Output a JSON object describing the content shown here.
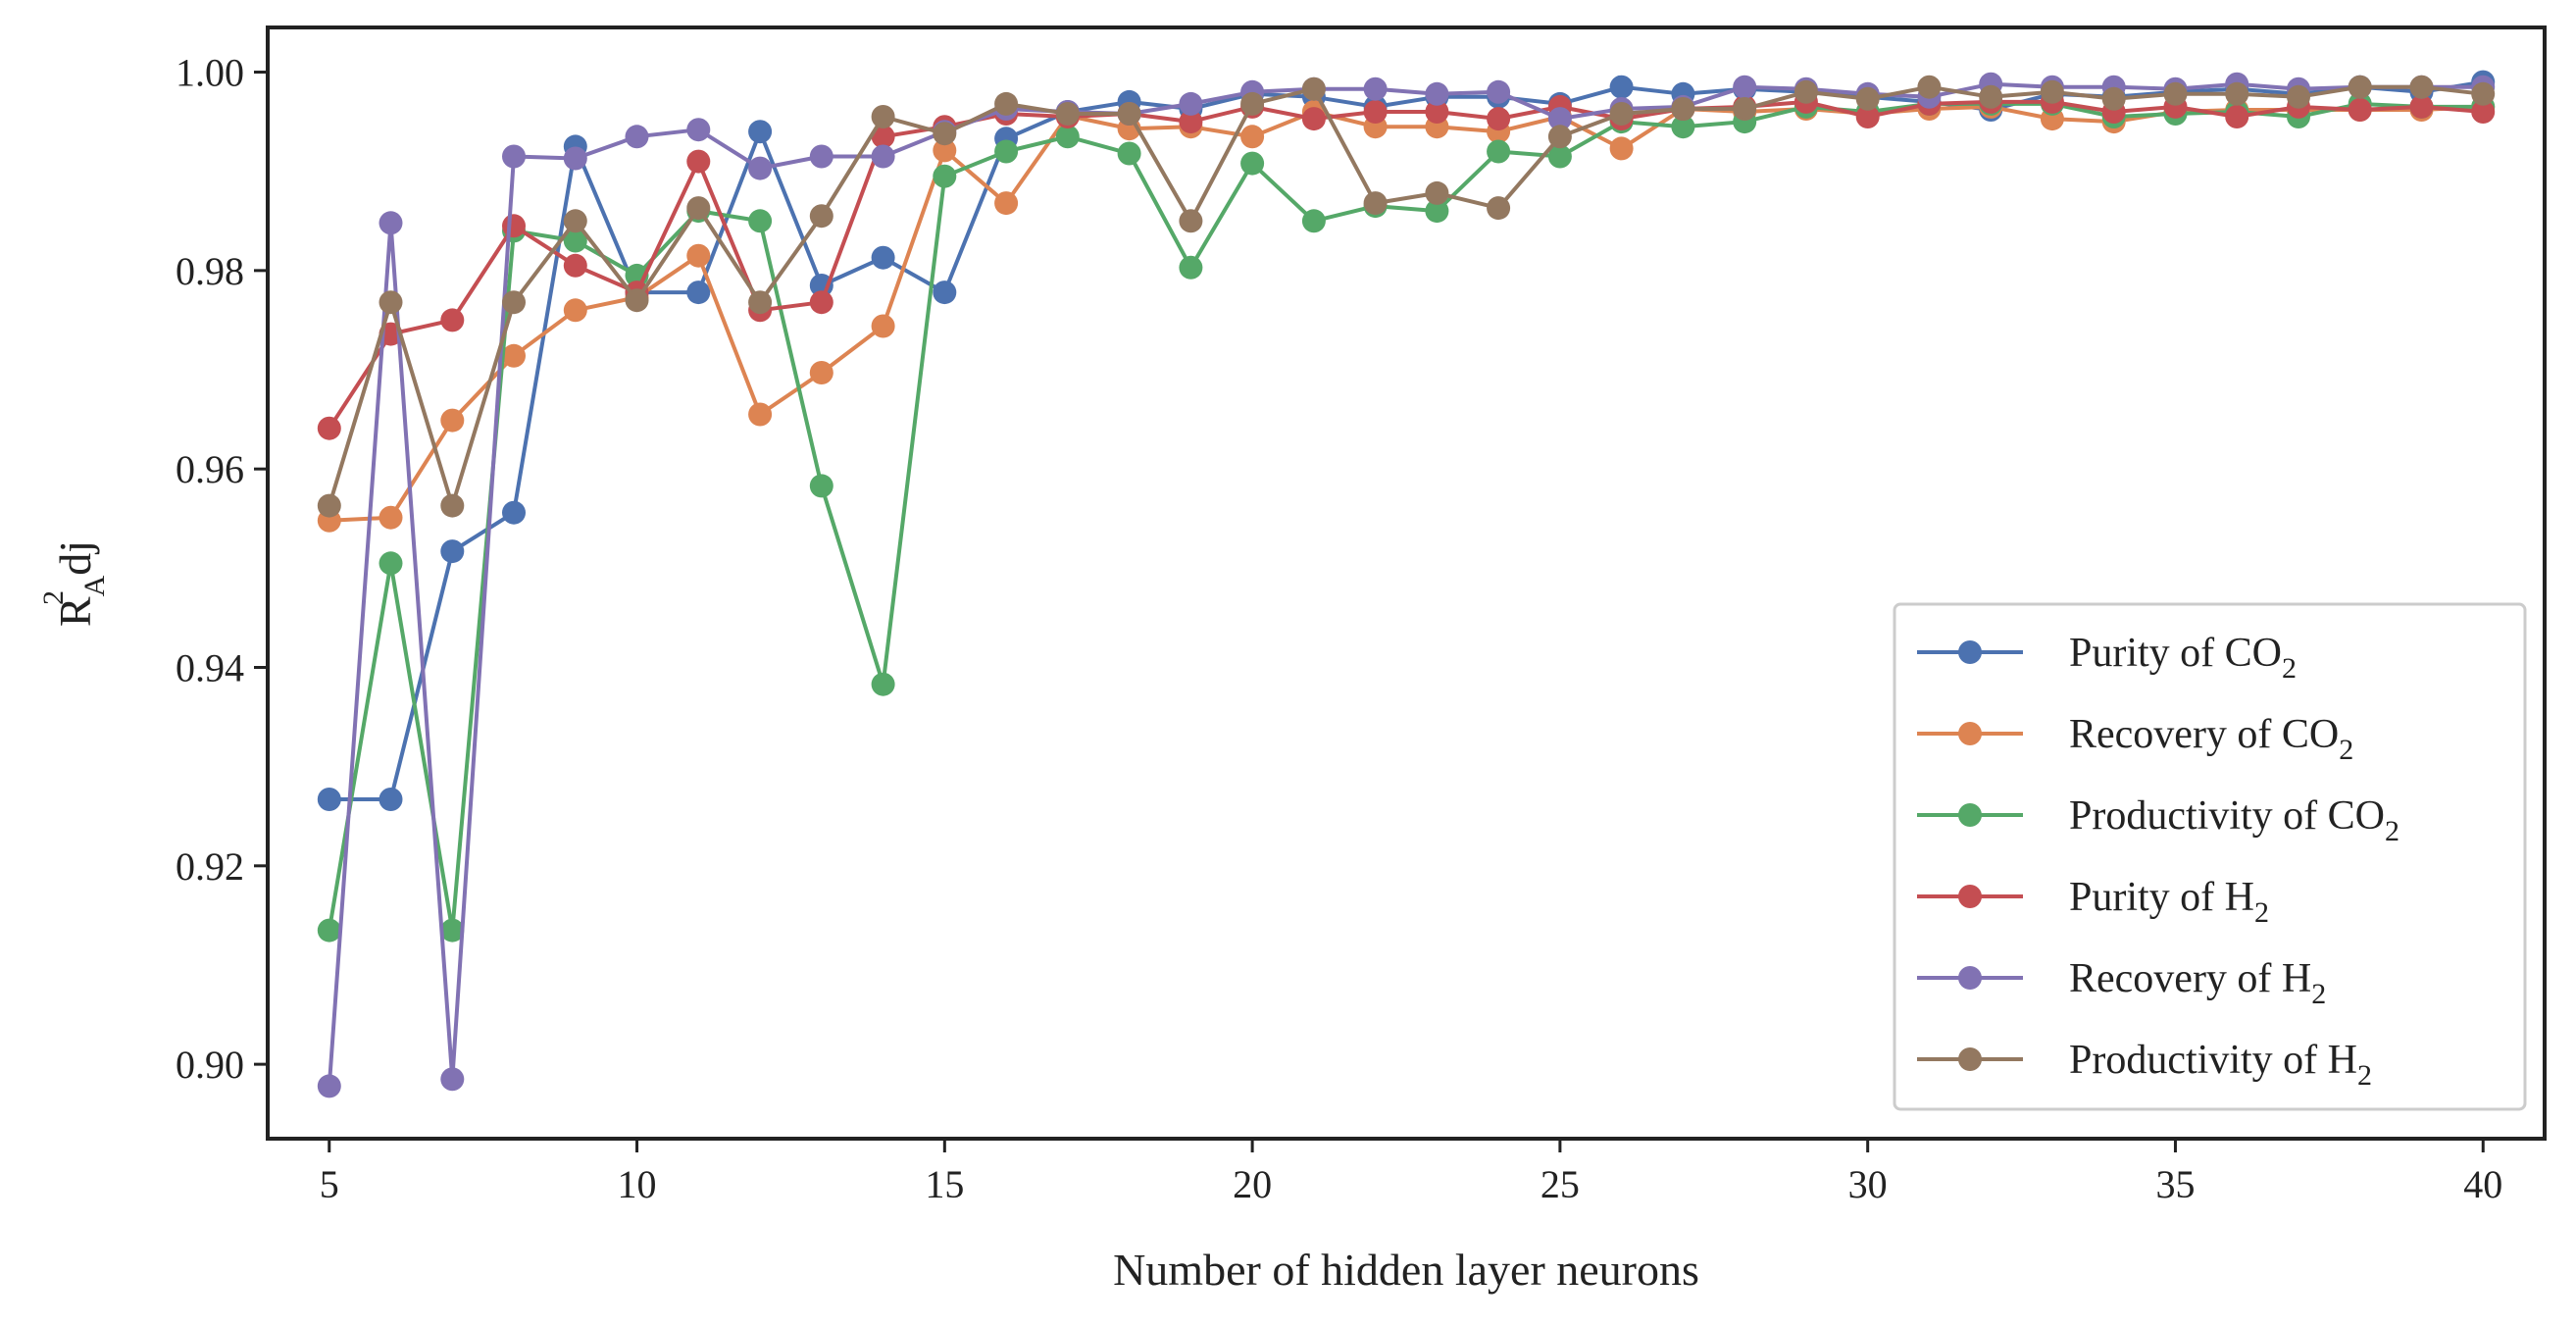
{
  "chart_data": {
    "type": "line",
    "x": [
      5,
      6,
      7,
      8,
      9,
      10,
      11,
      12,
      13,
      14,
      15,
      16,
      17,
      18,
      19,
      20,
      21,
      22,
      23,
      24,
      25,
      26,
      27,
      28,
      29,
      30,
      31,
      32,
      33,
      34,
      35,
      36,
      37,
      38,
      39,
      40
    ],
    "xlabel": "Number of hidden layer neurons",
    "ylabel": {
      "base": "R",
      "sup": "2",
      "sub": "A",
      "suffix": "dj"
    },
    "xlim": [
      4,
      41
    ],
    "ylim": [
      0.8925,
      1.0045
    ],
    "xticks": [
      5,
      10,
      15,
      20,
      25,
      30,
      35,
      40
    ],
    "yticks": [
      0.9,
      0.92,
      0.94,
      0.96,
      0.98,
      1.0
    ],
    "ytick_labels": [
      "0.90",
      "0.92",
      "0.94",
      "0.96",
      "0.98",
      "1.00"
    ],
    "grid": false,
    "legend_position": "bottom-right",
    "series": [
      {
        "label": "Purity of ",
        "formula": "CO",
        "sub": "2",
        "color": "#4c72b0",
        "values": [
          0.9267,
          0.9267,
          0.9517,
          0.9556,
          0.9925,
          0.9778,
          0.9778,
          0.994,
          0.9785,
          0.9813,
          0.9778,
          0.9933,
          0.996,
          0.997,
          0.9963,
          0.9978,
          0.9975,
          0.9965,
          0.9975,
          0.9975,
          0.9968,
          0.9985,
          0.9978,
          0.9983,
          0.998,
          0.9975,
          0.997,
          0.9962,
          0.9978,
          0.9975,
          0.998,
          0.9983,
          0.9978,
          0.9985,
          0.998,
          0.999
        ]
      },
      {
        "label": "Recovery of ",
        "formula": "CO",
        "sub": "2",
        "color": "#dd8452",
        "values": [
          0.9548,
          0.9551,
          0.9649,
          0.9714,
          0.976,
          0.9773,
          0.9815,
          0.9655,
          0.9697,
          0.9744,
          0.9921,
          0.9868,
          0.9956,
          0.9943,
          0.9945,
          0.9935,
          0.996,
          0.9945,
          0.9945,
          0.994,
          0.9955,
          0.9923,
          0.9963,
          0.996,
          0.9963,
          0.9958,
          0.9963,
          0.9965,
          0.9953,
          0.995,
          0.996,
          0.9962,
          0.9962,
          0.9962,
          0.9962,
          0.9965
        ]
      },
      {
        "label": "Productivity of ",
        "formula": "CO",
        "sub": "2",
        "color": "#55a868",
        "values": [
          0.9135,
          0.9505,
          0.9135,
          0.984,
          0.983,
          0.9795,
          0.986,
          0.985,
          0.9583,
          0.9383,
          0.9895,
          0.992,
          0.9935,
          0.9918,
          0.9803,
          0.9908,
          0.985,
          0.9865,
          0.986,
          0.992,
          0.9915,
          0.995,
          0.9945,
          0.995,
          0.9965,
          0.996,
          0.9968,
          0.9968,
          0.9968,
          0.9955,
          0.9958,
          0.996,
          0.9955,
          0.9968,
          0.9965,
          0.9965
        ]
      },
      {
        "label": "Purity of ",
        "formula": "H",
        "sub": "2",
        "color": "#c44e52",
        "values": [
          0.9641,
          0.9736,
          0.975,
          0.9845,
          0.9805,
          0.9778,
          0.991,
          0.976,
          0.9768,
          0.9935,
          0.9945,
          0.9958,
          0.9955,
          0.9958,
          0.995,
          0.9965,
          0.9953,
          0.996,
          0.996,
          0.9953,
          0.9965,
          0.9953,
          0.9963,
          0.9965,
          0.997,
          0.9955,
          0.9968,
          0.997,
          0.997,
          0.996,
          0.9965,
          0.9955,
          0.9965,
          0.9962,
          0.9965,
          0.996
        ]
      },
      {
        "label": "Recovery of ",
        "formula": "H",
        "sub": "2",
        "color": "#8172b3",
        "values": [
          0.8978,
          0.9848,
          0.8985,
          0.9915,
          0.9913,
          0.9935,
          0.9942,
          0.9903,
          0.9915,
          0.9915,
          0.994,
          0.9963,
          0.996,
          0.9958,
          0.9968,
          0.998,
          0.9983,
          0.9983,
          0.9978,
          0.998,
          0.9953,
          0.9963,
          0.9965,
          0.9985,
          0.9983,
          0.9978,
          0.9975,
          0.9988,
          0.9985,
          0.9985,
          0.9983,
          0.9988,
          0.9983,
          0.9985,
          0.9985,
          0.9985
        ]
      },
      {
        "label": "Productivity of ",
        "formula": "H",
        "sub": "2",
        "color": "#937860",
        "values": [
          0.9563,
          0.9768,
          0.9563,
          0.9768,
          0.985,
          0.977,
          0.9863,
          0.9768,
          0.9855,
          0.9955,
          0.9938,
          0.9968,
          0.9958,
          0.9958,
          0.985,
          0.9968,
          0.9983,
          0.9868,
          0.9878,
          0.9863,
          0.9935,
          0.9958,
          0.9963,
          0.9963,
          0.998,
          0.9973,
          0.9985,
          0.9975,
          0.998,
          0.9973,
          0.9978,
          0.9978,
          0.9975,
          0.9985,
          0.9985,
          0.9978
        ]
      }
    ]
  }
}
